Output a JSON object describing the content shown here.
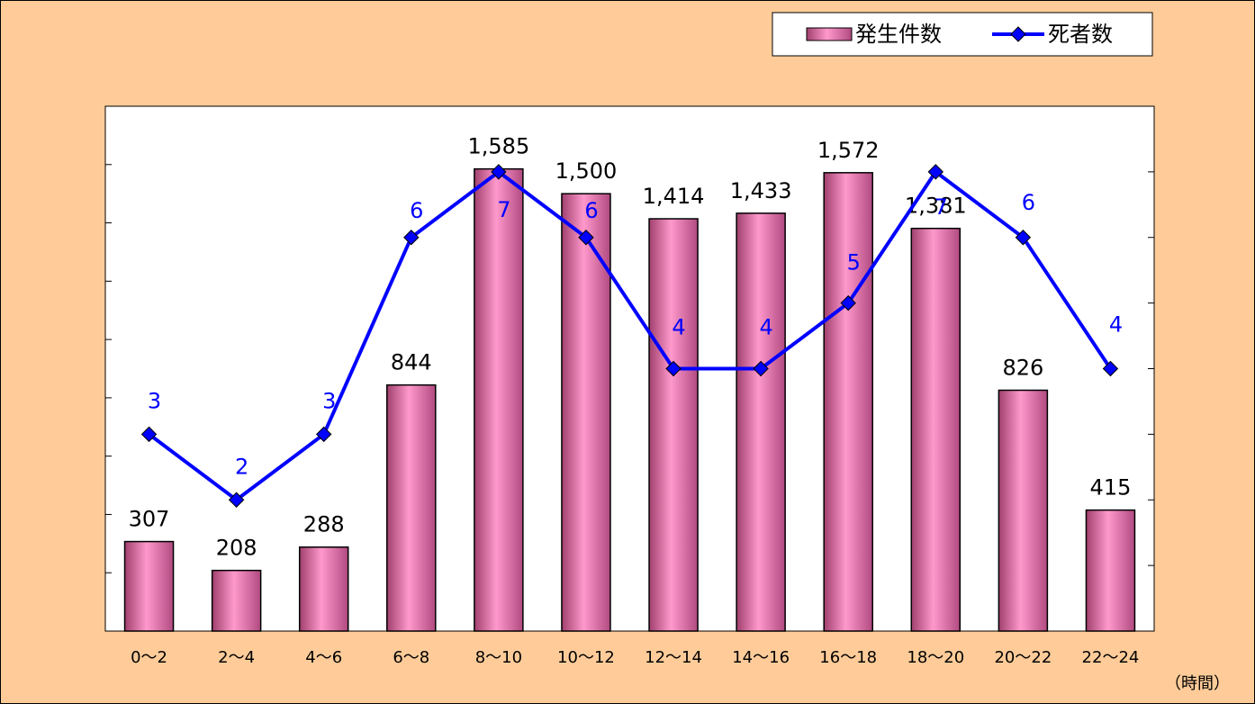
{
  "chart_data": {
    "type": "bar",
    "categories": [
      "0～2",
      "2～4",
      "4～6",
      "6～8",
      "8～10",
      "10～12",
      "12～14",
      "14～16",
      "16～18",
      "18～20",
      "20～22",
      "22～24"
    ],
    "series": [
      {
        "name": "発生件数",
        "type": "bar",
        "color": "#ff99cc",
        "values": [
          307,
          208,
          288,
          844,
          1585,
          1500,
          1414,
          1433,
          1572,
          1381,
          826,
          415
        ],
        "value_labels": [
          "307",
          "208",
          "288",
          "844",
          "1,585",
          "1,500",
          "1,414",
          "1,433",
          "1,572",
          "1,381",
          "826",
          "415"
        ]
      },
      {
        "name": "死者数",
        "type": "line",
        "axis": "y2",
        "color": "#0000ff",
        "values": [
          3,
          2,
          3,
          6,
          7,
          6,
          4,
          4,
          5,
          7,
          6,
          4
        ]
      }
    ],
    "x_label": "（時間）",
    "ylim": [
      0,
      1800
    ],
    "yticks": [
      0,
      200,
      400,
      600,
      800,
      1000,
      1200,
      1400,
      1600,
      1800
    ],
    "y2lim": [
      0,
      8
    ],
    "y2ticks": [
      0,
      1,
      2,
      3,
      4,
      5,
      6,
      7,
      8
    ],
    "legend": "top-right"
  }
}
